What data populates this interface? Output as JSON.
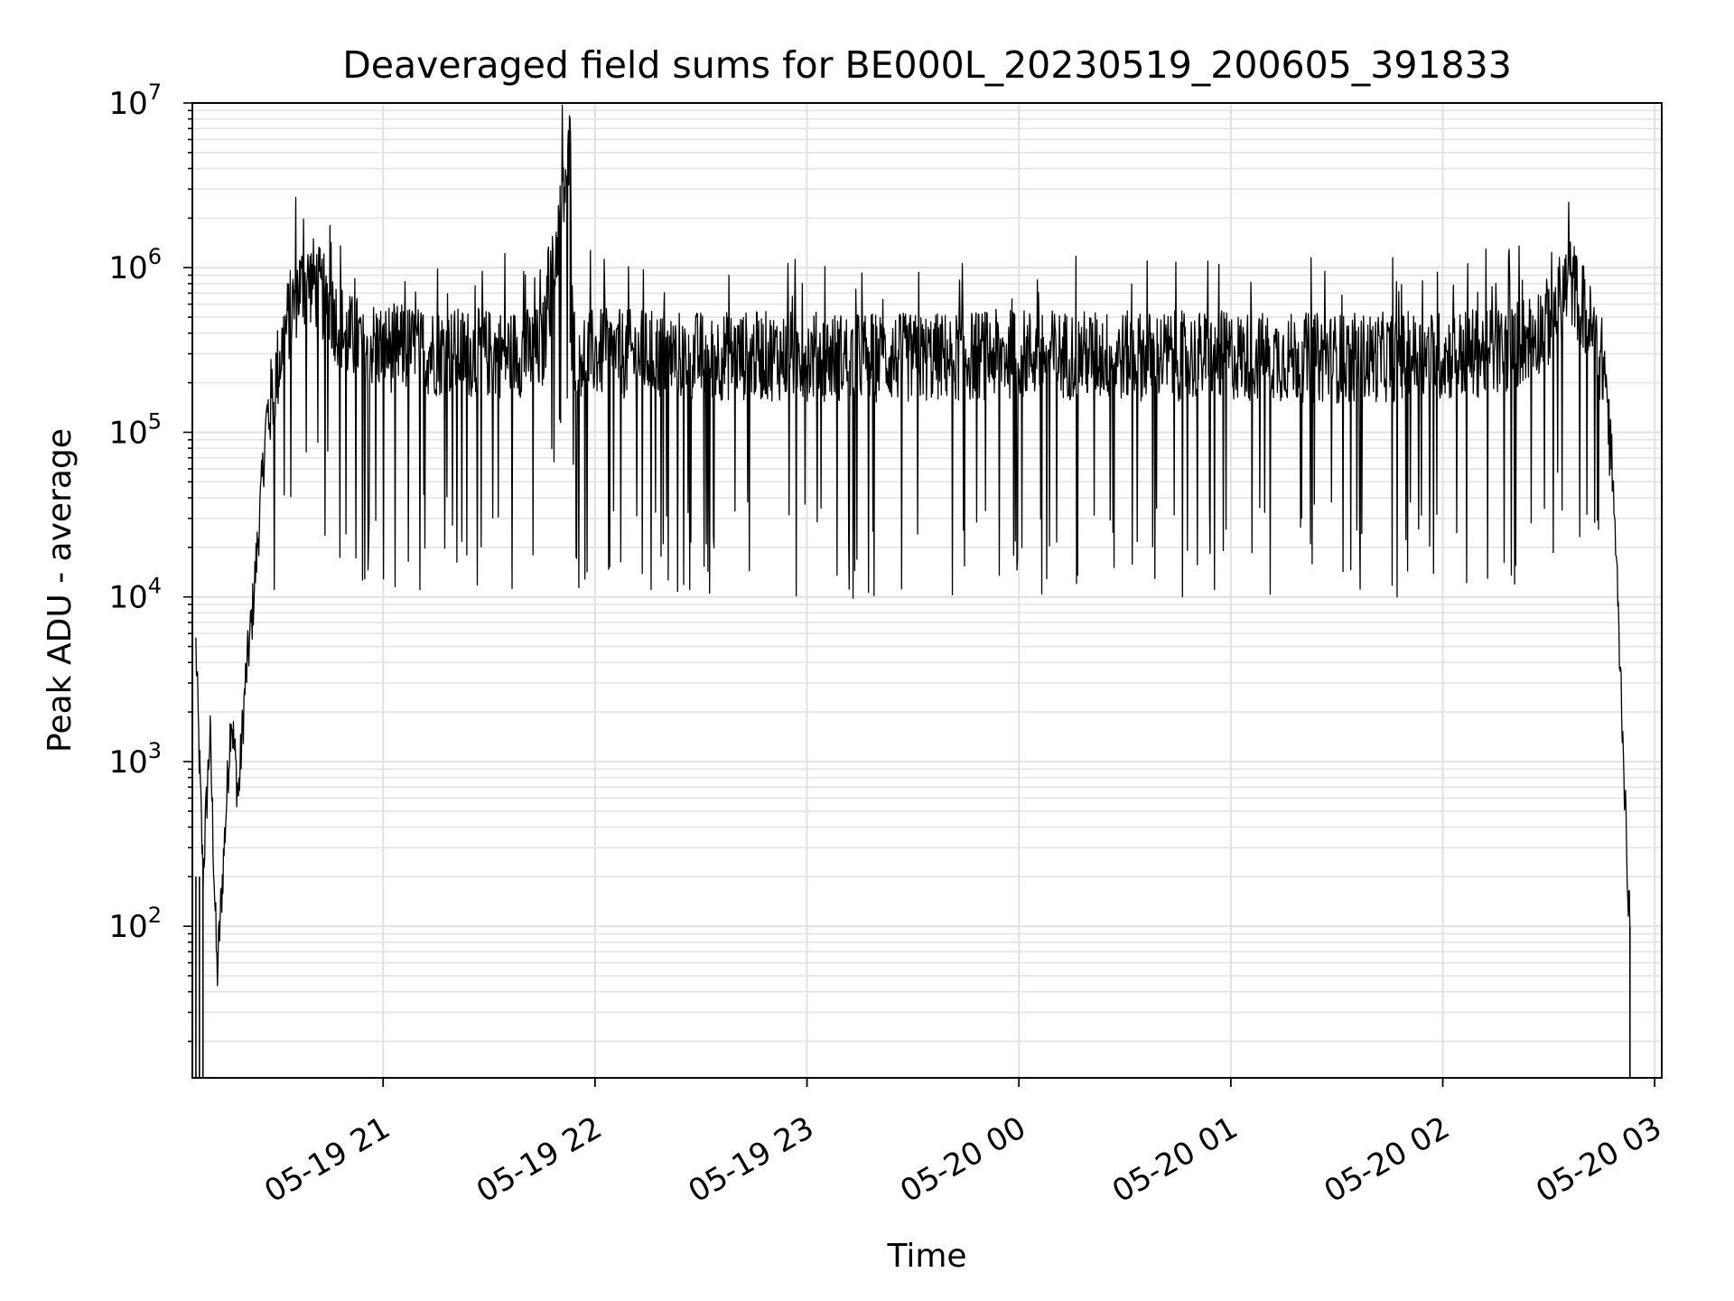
{
  "chart_data": {
    "type": "line",
    "title": "Deaveraged field sums for BE000L_20230519_200605_391833",
    "xlabel": "Time",
    "ylabel": "Peak ADU - average",
    "x_axis": {
      "type": "datetime",
      "range": [
        "2023-05-19 20:06",
        "2023-05-20 03:02"
      ],
      "ticks": [
        "05-19 21",
        "05-19 22",
        "05-19 23",
        "05-20 00",
        "05-20 01",
        "05-20 02",
        "05-20 03"
      ],
      "tick_rotation_deg": 30
    },
    "y_axis": {
      "scale": "log",
      "range": [
        12,
        10000000
      ],
      "ticks": [
        {
          "base": "10",
          "exp": "2"
        },
        {
          "base": "10",
          "exp": "3"
        },
        {
          "base": "10",
          "exp": "4"
        },
        {
          "base": "10",
          "exp": "5"
        },
        {
          "base": "10",
          "exp": "6"
        },
        {
          "base": "10",
          "exp": "7"
        }
      ]
    },
    "grid": true,
    "series": [
      {
        "color": "#000000",
        "x": [
          "2023-05-19 20:07",
          "2023-05-19 20:09",
          "2023-05-19 20:11",
          "2023-05-19 20:13",
          "2023-05-19 20:15",
          "2023-05-19 20:17",
          "2023-05-19 20:19",
          "2023-05-19 20:21",
          "2023-05-19 20:23",
          "2023-05-19 20:25",
          "2023-05-19 20:27",
          "2023-05-19 20:30",
          "2023-05-19 20:33",
          "2023-05-19 20:36",
          "2023-05-19 20:40",
          "2023-05-19 20:45",
          "2023-05-19 20:50",
          "2023-05-19 21:00",
          "2023-05-19 21:15",
          "2023-05-19 21:30",
          "2023-05-19 21:45",
          "2023-05-19 21:53",
          "2023-05-19 21:54",
          "2023-05-19 21:55",
          "2023-05-19 22:00",
          "2023-05-19 22:30",
          "2023-05-19 23:00",
          "2023-05-19 23:30",
          "2023-05-20 00:00",
          "2023-05-20 00:30",
          "2023-05-20 01:00",
          "2023-05-20 01:30",
          "2023-05-20 02:00",
          "2023-05-20 02:15",
          "2023-05-20 02:20",
          "2023-05-20 02:30",
          "2023-05-20 02:36",
          "2023-05-20 02:40",
          "2023-05-20 02:43",
          "2023-05-20 02:46",
          "2023-05-20 02:48",
          "2023-05-20 02:49",
          "2023-05-20 02:50",
          "2023-05-20 02:51",
          "2023-05-20 02:52",
          "2023-05-20 02:53"
        ],
        "y": [
          5000,
          200,
          1500,
          50,
          300,
          2000,
          600,
          3000,
          8000,
          30000,
          120000,
          250000,
          500000,
          800000,
          900000,
          600000,
          400000,
          350000,
          330000,
          320000,
          330000,
          5800000,
          350000,
          330000,
          320000,
          310000,
          310000,
          300000,
          320000,
          310000,
          310000,
          300000,
          310000,
          330000,
          350000,
          500000,
          900000,
          600000,
          380000,
          250000,
          60000,
          20000,
          5000,
          1500,
          300,
          100
        ]
      }
    ]
  }
}
